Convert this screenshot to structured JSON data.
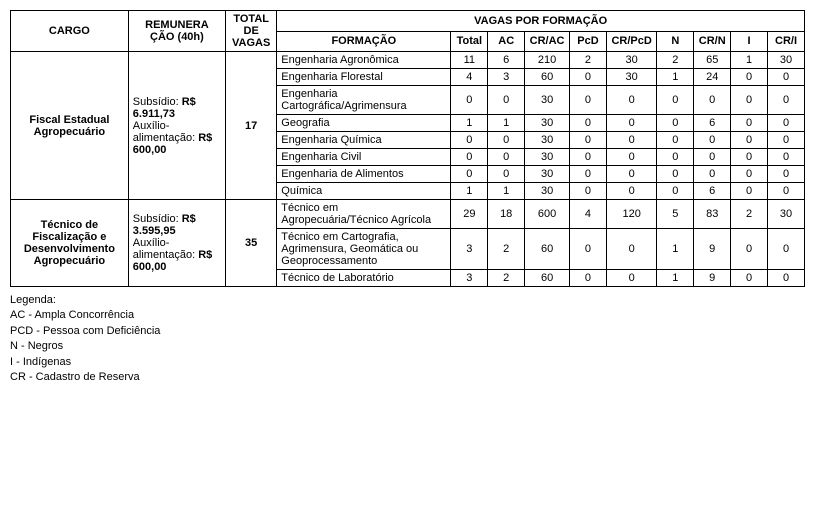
{
  "headers": {
    "cargo": "CARGO",
    "remuneracao": "REMUNERA ÇÃO (40h)",
    "total_vagas": "TOTAL DE VAGAS",
    "vagas_por_formacao": "VAGAS POR FORMAÇÃO",
    "formacao": "FORMAÇÃO",
    "total": "Total",
    "ac": "AC",
    "crac": "CR/AC",
    "pcd": "PcD",
    "crpcd": "CR/PcD",
    "n": "N",
    "crn": "CR/N",
    "i": "I",
    "cri": "CR/I"
  },
  "cargos": [
    {
      "nome": "Fiscal Estadual Agropecuário",
      "subsidio_label": "Subsídio:",
      "subsidio_valor": "R$ 6.911,73",
      "auxilio_label": "Auxílio-alimentação:",
      "auxilio_valor": "R$ 600,00",
      "total_vagas": "17",
      "formacoes": [
        {
          "nome": "Engenharia Agronômica",
          "total": "11",
          "ac": "6",
          "crac": "210",
          "pcd": "2",
          "crpcd": "30",
          "n": "2",
          "crn": "65",
          "i": "1",
          "cri": "30"
        },
        {
          "nome": "Engenharia Florestal",
          "total": "4",
          "ac": "3",
          "crac": "60",
          "pcd": "0",
          "crpcd": "30",
          "n": "1",
          "crn": "24",
          "i": "0",
          "cri": "0"
        },
        {
          "nome": "Engenharia Cartográfica/Agrimensura",
          "total": "0",
          "ac": "0",
          "crac": "30",
          "pcd": "0",
          "crpcd": "0",
          "n": "0",
          "crn": "0",
          "i": "0",
          "cri": "0"
        },
        {
          "nome": "Geografia",
          "total": "1",
          "ac": "1",
          "crac": "30",
          "pcd": "0",
          "crpcd": "0",
          "n": "0",
          "crn": "6",
          "i": "0",
          "cri": "0"
        },
        {
          "nome": "Engenharia Química",
          "total": "0",
          "ac": "0",
          "crac": "30",
          "pcd": "0",
          "crpcd": "0",
          "n": "0",
          "crn": "0",
          "i": "0",
          "cri": "0"
        },
        {
          "nome": "Engenharia Civil",
          "total": "0",
          "ac": "0",
          "crac": "30",
          "pcd": "0",
          "crpcd": "0",
          "n": "0",
          "crn": "0",
          "i": "0",
          "cri": "0"
        },
        {
          "nome": "Engenharia de Alimentos",
          "total": "0",
          "ac": "0",
          "crac": "30",
          "pcd": "0",
          "crpcd": "0",
          "n": "0",
          "crn": "0",
          "i": "0",
          "cri": "0"
        },
        {
          "nome": "Química",
          "total": "1",
          "ac": "1",
          "crac": "30",
          "pcd": "0",
          "crpcd": "0",
          "n": "0",
          "crn": "6",
          "i": "0",
          "cri": "0"
        }
      ]
    },
    {
      "nome": "Técnico de Fiscalização e Desenvolvimento Agropecuário",
      "subsidio_label": "Subsídio:",
      "subsidio_valor": "R$ 3.595,95",
      "auxilio_label": "Auxílio-alimentação:",
      "auxilio_valor": "R$ 600,00",
      "total_vagas": "35",
      "formacoes": [
        {
          "nome": "Técnico em Agropecuária/Técnico Agrícola",
          "total": "29",
          "ac": "18",
          "crac": "600",
          "pcd": "4",
          "crpcd": "120",
          "n": "5",
          "crn": "83",
          "i": "2",
          "cri": "30"
        },
        {
          "nome": "Técnico em Cartografia, Agrimensura, Geomática ou Geoprocessamento",
          "total": "3",
          "ac": "2",
          "crac": "60",
          "pcd": "0",
          "crpcd": "0",
          "n": "1",
          "crn": "9",
          "i": "0",
          "cri": "0"
        },
        {
          "nome": "Técnico de Laboratório",
          "total": "3",
          "ac": "2",
          "crac": "60",
          "pcd": "0",
          "crpcd": "0",
          "n": "1",
          "crn": "9",
          "i": "0",
          "cri": "0"
        }
      ]
    }
  ],
  "legenda": {
    "titulo": "Legenda:",
    "linhas": [
      "AC - Ampla Concorrência",
      "PCD - Pessoa com Deficiência",
      "N - Negros",
      "I - Indígenas",
      "CR - Cadastro de Reserva"
    ]
  }
}
